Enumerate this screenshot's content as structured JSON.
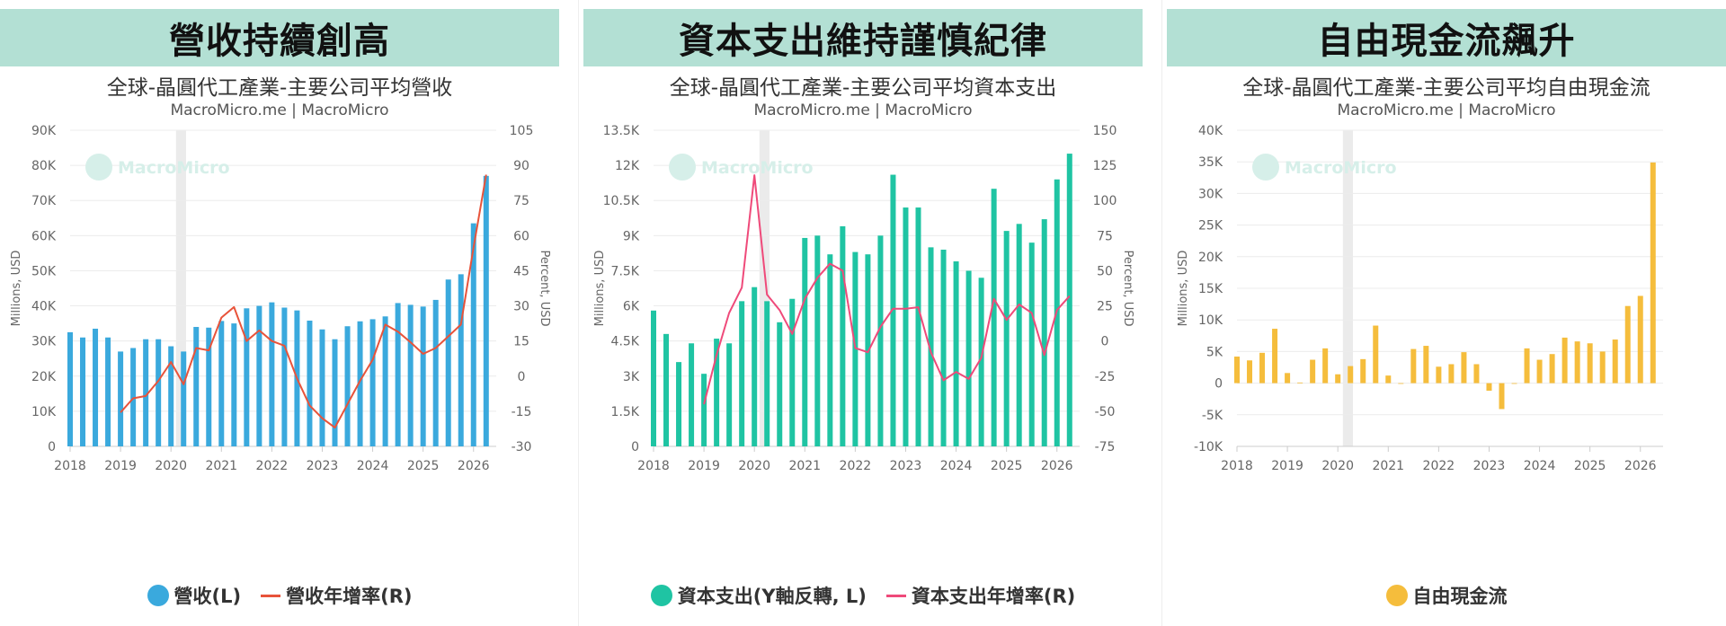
{
  "colors": {
    "banner_bg": "#b3e0d4",
    "revenue_bar": "#3aa9dd",
    "revenue_line": "#e8533a",
    "capex_bar": "#1fc4a3",
    "capex_line": "#ef4a7a",
    "fcf_bar": "#f5bd3c",
    "grid": "#ececec",
    "recession_band": "#ebebeb"
  },
  "watermark": "MacroMicro",
  "panels": [
    {
      "banner": "營收持續創高",
      "title": "全球-晶圓代工產業-主要公司平均營收",
      "subtitle": "MacroMicro.me | MacroMicro",
      "legend": [
        {
          "label": "營收(L)",
          "kind": "dot"
        },
        {
          "label": "營收年增率(R)",
          "kind": "line"
        }
      ]
    },
    {
      "banner": "資本支出維持謹慎紀律",
      "title": "全球-晶圓代工產業-主要公司平均資本支出",
      "subtitle": "MacroMicro.me | MacroMicro",
      "legend": [
        {
          "label": "資本支出(Y軸反轉, L)",
          "kind": "dot"
        },
        {
          "label": "資本支出年增率(R)",
          "kind": "line"
        }
      ]
    },
    {
      "banner": "自由現金流飆升",
      "title": "全球-晶圓代工產業-主要公司平均自由現金流",
      "subtitle": "MacroMicro.me | MacroMicro",
      "legend": [
        {
          "label": "自由現金流",
          "kind": "dot"
        }
      ]
    }
  ],
  "chart_data": [
    {
      "type": "bar",
      "title": "全球-晶圓代工產業-主要公司平均營收",
      "ylabel": "Millions, USD",
      "y2label": "Percent, USD",
      "ylim": [
        0,
        90000
      ],
      "y2lim": [
        -30,
        105
      ],
      "yticks": [
        "0",
        "10K",
        "20K",
        "30K",
        "40K",
        "50K",
        "60K",
        "70K",
        "80K",
        "90K"
      ],
      "y2ticks": [
        "-30",
        "-15",
        "0",
        "15",
        "30",
        "45",
        "60",
        "75",
        "90",
        "105"
      ],
      "xticks": [
        "2018",
        "2019",
        "2020",
        "2021",
        "2022",
        "2023",
        "2024",
        "2025",
        "2026"
      ],
      "x_start": 2018.0,
      "x_end": 2026.45,
      "recession_band": [
        2020.1,
        2020.3
      ],
      "legend_position": "bottom",
      "grid": true,
      "x": [
        2018.0,
        2018.25,
        2018.5,
        2018.75,
        2019.0,
        2019.25,
        2019.5,
        2019.75,
        2020.0,
        2020.25,
        2020.5,
        2020.75,
        2021.0,
        2021.25,
        2021.5,
        2021.75,
        2022.0,
        2022.25,
        2022.5,
        2022.75,
        2023.0,
        2023.25,
        2023.5,
        2023.75,
        2024.0,
        2024.25,
        2024.5,
        2024.75,
        2025.0,
        2025.25,
        2025.5,
        2025.75,
        2026.0,
        2026.25
      ],
      "series": [
        {
          "name": "營收(L)",
          "axis": "left",
          "type": "bar",
          "values": [
            32500,
            31000,
            33500,
            31000,
            27000,
            28000,
            30500,
            30500,
            28500,
            27000,
            34000,
            33800,
            35700,
            35000,
            39300,
            40000,
            41000,
            39500,
            38700,
            35800,
            33300,
            30500,
            34200,
            35600,
            36200,
            37000,
            40800,
            40300,
            39800,
            41700,
            47500,
            49000,
            63500,
            77000
          ]
        },
        {
          "name": "營收年增率(R)",
          "axis": "right",
          "type": "line",
          "values": [
            null,
            null,
            null,
            null,
            -15.5,
            -9.5,
            -8.5,
            -2,
            6,
            -3.5,
            12,
            11,
            25,
            29.5,
            15,
            19.5,
            15,
            13,
            -1,
            -12.5,
            -18,
            -22,
            -12,
            -2,
            7,
            22,
            19,
            14.5,
            9.5,
            12,
            17,
            22,
            55,
            86
          ]
        }
      ]
    },
    {
      "type": "bar",
      "title": "全球-晶圓代工產業-主要公司平均資本支出",
      "ylabel": "Millions, USD",
      "y2label": "Percent, USD",
      "ylim": [
        0,
        13500
      ],
      "y2lim": [
        -75,
        150
      ],
      "yticks": [
        "0",
        "1.5K",
        "3K",
        "4.5K",
        "6K",
        "7.5K",
        "9K",
        "10.5K",
        "12K",
        "13.5K"
      ],
      "y2ticks": [
        "-75",
        "-50",
        "-25",
        "0",
        "25",
        "50",
        "75",
        "100",
        "125",
        "150"
      ],
      "xticks": [
        "2018",
        "2019",
        "2020",
        "2021",
        "2022",
        "2023",
        "2024",
        "2025",
        "2026"
      ],
      "x_start": 2018.0,
      "x_end": 2026.45,
      "recession_band": [
        2020.1,
        2020.3
      ],
      "legend_position": "bottom",
      "grid": true,
      "x": [
        2018.0,
        2018.25,
        2018.5,
        2018.75,
        2019.0,
        2019.25,
        2019.5,
        2019.75,
        2020.0,
        2020.25,
        2020.5,
        2020.75,
        2021.0,
        2021.25,
        2021.5,
        2021.75,
        2022.0,
        2022.25,
        2022.5,
        2022.75,
        2023.0,
        2023.25,
        2023.5,
        2023.75,
        2024.0,
        2024.25,
        2024.5,
        2024.75,
        2025.0,
        2025.25,
        2025.5,
        2025.75,
        2026.0,
        2026.25
      ],
      "series": [
        {
          "name": "資本支出(Y軸反轉, L)",
          "axis": "left",
          "type": "bar",
          "values": [
            5800,
            4800,
            3600,
            4400,
            3100,
            4600,
            4400,
            6200,
            6800,
            6200,
            5300,
            6300,
            8900,
            9000,
            8200,
            9400,
            8300,
            8200,
            9000,
            11600,
            10200,
            10200,
            8500,
            8400,
            7900,
            7500,
            7200,
            11000,
            9200,
            9500,
            8700,
            9700,
            11400,
            12500
          ]
        },
        {
          "name": "資本支出年增率(R)",
          "axis": "right",
          "type": "line",
          "values": [
            null,
            null,
            null,
            null,
            -45,
            -10,
            20,
            38,
            118,
            33,
            22,
            5,
            30,
            45,
            55,
            50,
            -5,
            -8,
            10,
            23,
            23,
            24,
            -8,
            -28,
            -22,
            -27,
            -12,
            30,
            15,
            26,
            20,
            -10,
            22,
            32
          ]
        }
      ]
    },
    {
      "type": "bar",
      "title": "全球-晶圓代工產業-主要公司平均自由現金流",
      "ylabel": "Millions, USD",
      "ylim": [
        -10000,
        40000
      ],
      "yticks": [
        "-10K",
        "-5K",
        "0",
        "5K",
        "10K",
        "15K",
        "20K",
        "25K",
        "30K",
        "35K",
        "40K"
      ],
      "xticks": [
        "2018",
        "2019",
        "2020",
        "2021",
        "2022",
        "2023",
        "2024",
        "2025",
        "2026"
      ],
      "x_start": 2018.0,
      "x_end": 2026.45,
      "recession_band": [
        2020.1,
        2020.3
      ],
      "legend_position": "bottom",
      "grid": true,
      "x": [
        2018.0,
        2018.25,
        2018.5,
        2018.75,
        2019.0,
        2019.25,
        2019.5,
        2019.75,
        2020.0,
        2020.25,
        2020.5,
        2020.75,
        2021.0,
        2021.25,
        2021.5,
        2021.75,
        2022.0,
        2022.25,
        2022.5,
        2022.75,
        2023.0,
        2023.25,
        2023.5,
        2023.75,
        2024.0,
        2024.25,
        2024.5,
        2024.75,
        2025.0,
        2025.25,
        2025.5,
        2025.75,
        2026.0,
        2026.25
      ],
      "series": [
        {
          "name": "自由現金流",
          "axis": "left",
          "type": "bar",
          "values": [
            4200,
            3600,
            4800,
            8600,
            1600,
            100,
            3700,
            5500,
            1400,
            2700,
            3800,
            9100,
            1200,
            -100,
            5400,
            5900,
            2600,
            3000,
            4900,
            3000,
            -1200,
            -4100,
            0,
            5500,
            3700,
            4600,
            7200,
            6600,
            6300,
            5000,
            6900,
            12200,
            13800,
            34900
          ]
        }
      ]
    }
  ]
}
